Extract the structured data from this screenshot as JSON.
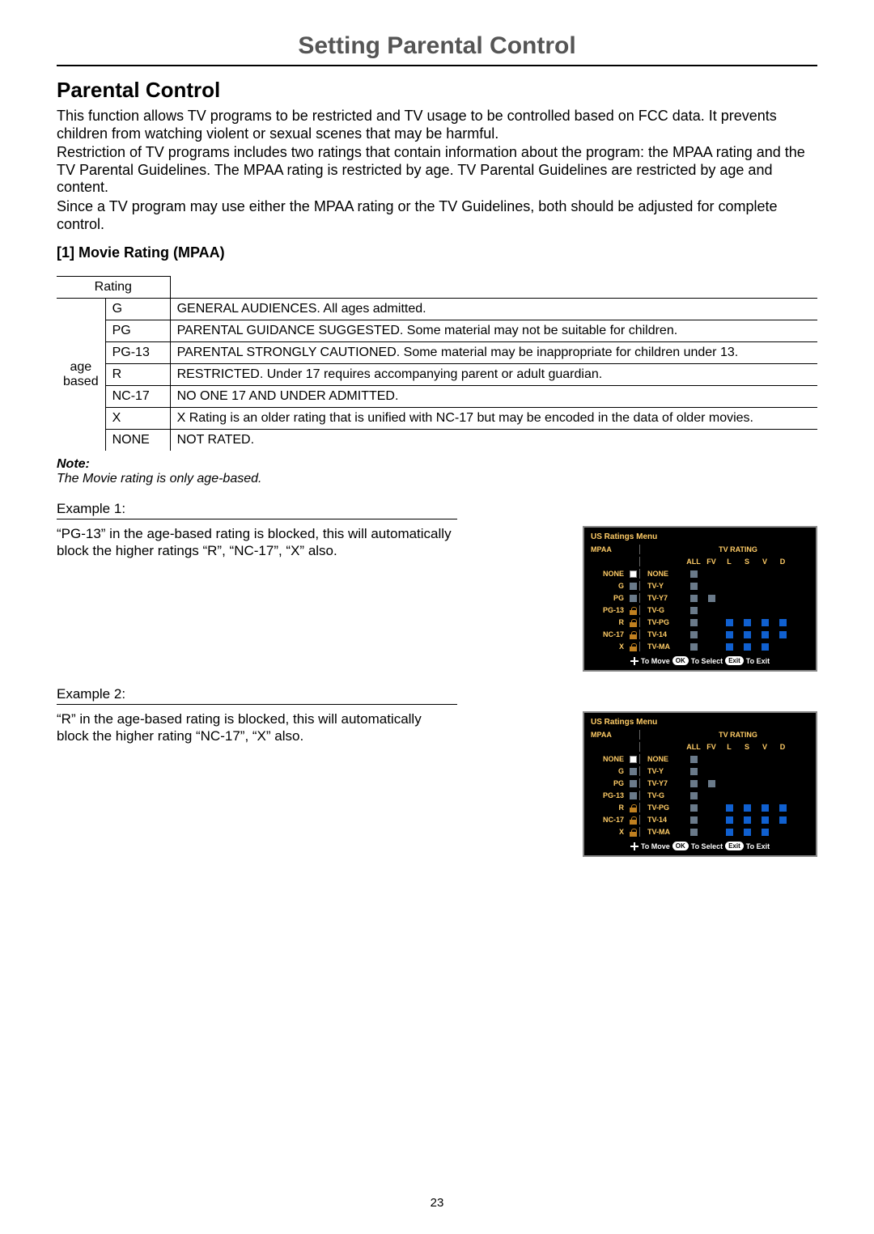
{
  "page": {
    "main_title": "Setting Parental Control",
    "section_title": "Parental Control",
    "paragraphs": [
      "This function allows TV programs to be restricted and TV usage to be controlled based on FCC data. It prevents children from watching violent or sexual scenes that may be harmful.",
      "Restriction of TV programs includes two ratings that contain information about the program: the MPAA rating and the TV Parental Guidelines. The MPAA rating is restricted by age. TV Parental Guidelines are restricted by age and content.",
      "Since a TV program may use either the MPAA rating or the TV Guidelines, both should be adjusted for complete control."
    ],
    "sub_title": "[1] Movie Rating (MPAA)",
    "note_label": "Note:",
    "note_text": "The Movie rating is only age-based.",
    "page_number": "23"
  },
  "ratings_table": {
    "header_cell": "Rating",
    "age_based_label": "age based",
    "rows": [
      {
        "code": "G",
        "desc": "GENERAL AUDIENCES. All ages admitted."
      },
      {
        "code": "PG",
        "desc": "PARENTAL GUIDANCE SUGGESTED. Some material may not be suitable for children."
      },
      {
        "code": "PG-13",
        "desc": "PARENTAL STRONGLY CAUTIONED. Some material may be inappropriate for children under 13."
      },
      {
        "code": "R",
        "desc": "RESTRICTED. Under 17 requires accompanying parent or adult guardian."
      },
      {
        "code": "NC-17",
        "desc": "NO ONE 17 AND UNDER ADMITTED."
      },
      {
        "code": "X",
        "desc": "X Rating is an older rating that is unified with NC-17 but may be encoded in the data of older movies."
      },
      {
        "code": "NONE",
        "desc": "NOT RATED."
      }
    ]
  },
  "examples": [
    {
      "header": "Example 1:",
      "text": "“PG-13” in the age-based rating is blocked, this will automatically block the higher ratings “R”, “NC-17”, “X” also.",
      "osd": {
        "title": "US Ratings Menu",
        "mpaa_label": "MPAA",
        "tvrating_label": "TV RATING",
        "tv_cols": [
          "ALL",
          "FV",
          "L",
          "S",
          "V",
          "D"
        ],
        "mpaa_rows": [
          {
            "label": "NONE",
            "state": "white"
          },
          {
            "label": "G",
            "state": "gray"
          },
          {
            "label": "PG",
            "state": "gray"
          },
          {
            "label": "PG-13",
            "state": "lock"
          },
          {
            "label": "R",
            "state": "lock"
          },
          {
            "label": "NC-17",
            "state": "lock"
          },
          {
            "label": "X",
            "state": "lock"
          }
        ],
        "tv_rows": [
          {
            "label": "NONE",
            "cells": [
              "gray",
              "",
              "",
              "",
              "",
              ""
            ]
          },
          {
            "label": "TV-Y",
            "cells": [
              "gray",
              "",
              "",
              "",
              "",
              ""
            ]
          },
          {
            "label": "TV-Y7",
            "cells": [
              "gray",
              "gray",
              "",
              "",
              "",
              ""
            ]
          },
          {
            "label": "TV-G",
            "cells": [
              "gray",
              "",
              "",
              "",
              "",
              ""
            ]
          },
          {
            "label": "TV-PG",
            "cells": [
              "gray",
              "",
              "blue",
              "blue",
              "blue",
              "blue"
            ]
          },
          {
            "label": "TV-14",
            "cells": [
              "gray",
              "",
              "blue",
              "blue",
              "blue",
              "blue"
            ]
          },
          {
            "label": "TV-MA",
            "cells": [
              "gray",
              "",
              "blue",
              "blue",
              "blue",
              ""
            ]
          }
        ],
        "footer": {
          "move": "To Move",
          "ok": "OK",
          "select": "To Select",
          "exit": "Exit",
          "toexit": "To Exit"
        }
      }
    },
    {
      "header": "Example 2:",
      "text": "“R” in the age-based rating is blocked, this will automatically block the higher rating “NC-17”, “X” also.",
      "osd": {
        "title": "US Ratings Menu",
        "mpaa_label": "MPAA",
        "tvrating_label": "TV RATING",
        "tv_cols": [
          "ALL",
          "FV",
          "L",
          "S",
          "V",
          "D"
        ],
        "mpaa_rows": [
          {
            "label": "NONE",
            "state": "white"
          },
          {
            "label": "G",
            "state": "gray"
          },
          {
            "label": "PG",
            "state": "gray"
          },
          {
            "label": "PG-13",
            "state": "gray"
          },
          {
            "label": "R",
            "state": "lock"
          },
          {
            "label": "NC-17",
            "state": "lock"
          },
          {
            "label": "X",
            "state": "lock"
          }
        ],
        "tv_rows": [
          {
            "label": "NONE",
            "cells": [
              "gray",
              "",
              "",
              "",
              "",
              ""
            ]
          },
          {
            "label": "TV-Y",
            "cells": [
              "gray",
              "",
              "",
              "",
              "",
              ""
            ]
          },
          {
            "label": "TV-Y7",
            "cells": [
              "gray",
              "gray",
              "",
              "",
              "",
              ""
            ]
          },
          {
            "label": "TV-G",
            "cells": [
              "gray",
              "",
              "",
              "",
              "",
              ""
            ]
          },
          {
            "label": "TV-PG",
            "cells": [
              "gray",
              "",
              "blue",
              "blue",
              "blue",
              "blue"
            ]
          },
          {
            "label": "TV-14",
            "cells": [
              "gray",
              "",
              "blue",
              "blue",
              "blue",
              "blue"
            ]
          },
          {
            "label": "TV-MA",
            "cells": [
              "gray",
              "",
              "blue",
              "blue",
              "blue",
              ""
            ]
          }
        ],
        "footer": {
          "move": "To Move",
          "ok": "OK",
          "select": "To Select",
          "exit": "Exit",
          "toexit": "To Exit"
        }
      }
    }
  ]
}
